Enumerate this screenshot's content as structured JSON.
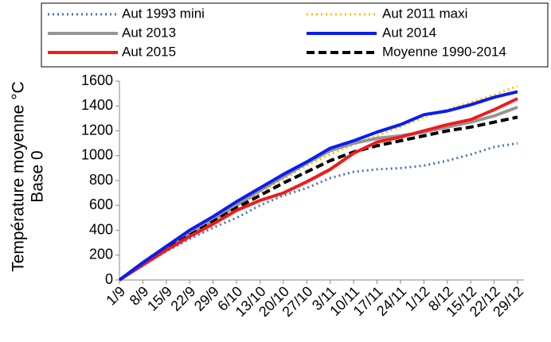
{
  "chart_data": {
    "type": "line",
    "ylabel": [
      "Température moyenne °C",
      "Base 0"
    ],
    "categories": [
      "1/9",
      "8/9",
      "15/9",
      "22/9",
      "29/9",
      "6/10",
      "13/10",
      "20/10",
      "27/10",
      "3/11",
      "10/11",
      "17/11",
      "24/11",
      "1/12",
      "8/12",
      "15/12",
      "22/12",
      "29/12"
    ],
    "ylim": [
      0,
      1600
    ],
    "yticks": [
      0,
      200,
      400,
      600,
      800,
      1000,
      1200,
      1400,
      1600
    ],
    "series": [
      {
        "name": "Aut 1993 mini",
        "color": "#4a72a8",
        "style": "dotted",
        "values": [
          0,
          120,
          230,
          330,
          420,
          500,
          600,
          680,
          740,
          820,
          870,
          890,
          900,
          920,
          960,
          1010,
          1070,
          1100
        ]
      },
      {
        "name": "Aut 2011 maxi",
        "color": "#ffc000",
        "style": "dotted",
        "values": [
          0,
          130,
          250,
          370,
          480,
          590,
          700,
          810,
          920,
          1010,
          1090,
          1160,
          1230,
          1310,
          1370,
          1430,
          1490,
          1560
        ]
      },
      {
        "name": "Aut 2013",
        "color": "#969696",
        "style": "solid",
        "values": [
          0,
          130,
          250,
          370,
          480,
          600,
          720,
          830,
          940,
          1040,
          1100,
          1140,
          1160,
          1190,
          1230,
          1270,
          1320,
          1390
        ]
      },
      {
        "name": "Aut 2014",
        "color": "#0a1ef0",
        "style": "solid",
        "values": [
          0,
          140,
          270,
          400,
          510,
          630,
          740,
          850,
          950,
          1060,
          1120,
          1190,
          1250,
          1330,
          1360,
          1410,
          1470,
          1515
        ]
      },
      {
        "name": "Aut 2015",
        "color": "#f21a1a",
        "style": "solid",
        "values": [
          0,
          120,
          240,
          350,
          450,
          560,
          640,
          700,
          790,
          890,
          1020,
          1110,
          1150,
          1200,
          1250,
          1290,
          1370,
          1460
        ]
      },
      {
        "name": "Moyenne 1990-2014",
        "color": "#000000",
        "style": "dashed",
        "values": [
          0,
          125,
          245,
          360,
          470,
          580,
          680,
          780,
          870,
          960,
          1030,
          1080,
          1120,
          1160,
          1200,
          1230,
          1270,
          1310
        ]
      }
    ]
  }
}
